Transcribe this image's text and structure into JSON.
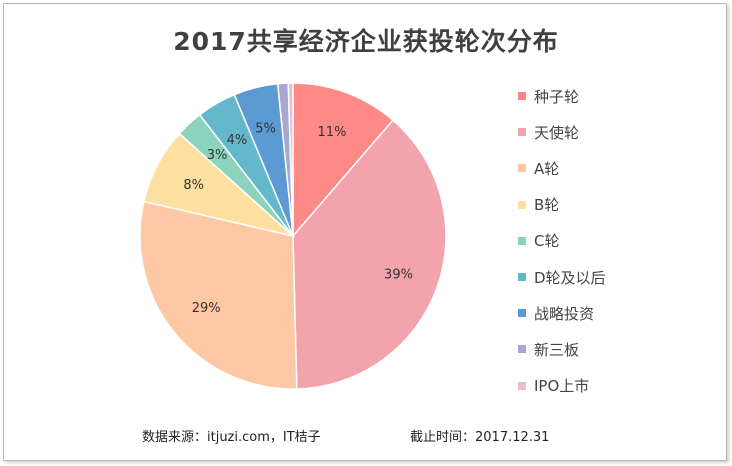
{
  "chart_data": {
    "type": "pie",
    "title": "2017共享经济企业获投轮次分布",
    "categories": [
      "种子轮",
      "天使轮",
      "A轮",
      "B轮",
      "C轮",
      "D轮及以后",
      "战略投资",
      "新三板",
      "IPO上市"
    ],
    "values": [
      11.4,
      38.5,
      29.2,
      8.1,
      2.9,
      4.2,
      4.7,
      1.1,
      0.5
    ],
    "data_labels": [
      "11%",
      "39%",
      "29%",
      "8%",
      "3%",
      "4%",
      "5%",
      "",
      ""
    ],
    "colors": [
      "#fe8a87",
      "#f2a3ab",
      "#fec8a5",
      "#fde0a0",
      "#8cd3bd",
      "#64b8cc",
      "#5b9ad2",
      "#a9a6d2",
      "#e6bfd6"
    ],
    "legend_position": "right"
  },
  "footer": {
    "source": "数据来源：itjuzi.com，IT桔子",
    "date": "截止时间：2017.12.31"
  }
}
